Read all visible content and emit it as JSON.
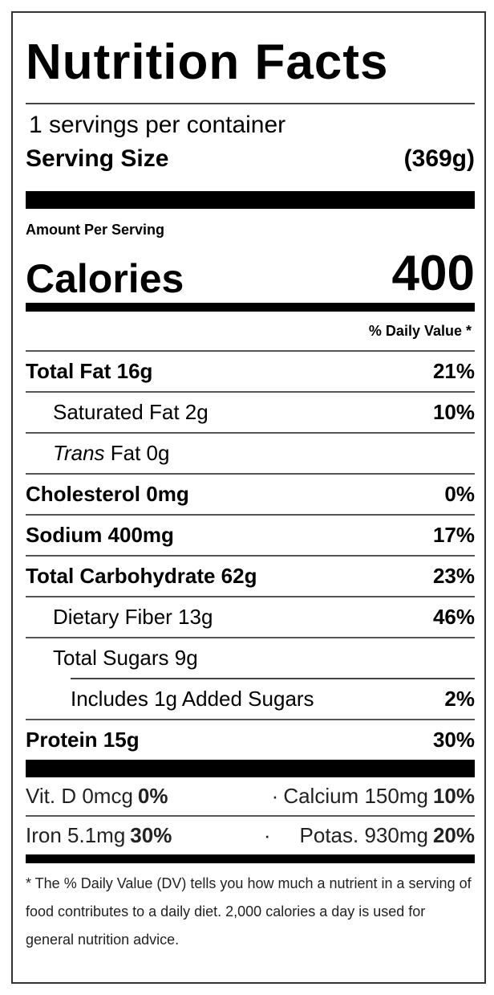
{
  "title": "Nutrition Facts",
  "servings_per_container": "1 servings per container",
  "serving_size_label": "Serving Size",
  "serving_size_value": "(369g)",
  "amount_per_serving": "Amount Per Serving",
  "calories_label": "Calories",
  "calories_value": "400",
  "daily_value_header": "% Daily Value *",
  "nutrients": [
    {
      "label": "Total Fat 16g",
      "dv": "21%"
    },
    {
      "label": "Saturated Fat 2g",
      "dv": "10%"
    },
    {
      "label_italic": "Trans",
      "label": " Fat 0g",
      "dv": ""
    },
    {
      "label": "Cholesterol 0mg",
      "dv": "0%"
    },
    {
      "label": "Sodium 400mg",
      "dv": "17%"
    },
    {
      "label": "Total Carbohydrate 62g",
      "dv": "23%"
    },
    {
      "label": "Dietary Fiber 13g",
      "dv": "46%"
    },
    {
      "label": "Total Sugars 9g",
      "dv": ""
    },
    {
      "label": "Includes 1g Added Sugars",
      "dv": "2%"
    },
    {
      "label": "Protein 15g",
      "dv": "30%"
    }
  ],
  "minerals": [
    {
      "label": "Vit. D 0mcg",
      "dv": "0%"
    },
    {
      "label": "Calcium 150mg",
      "dv": "10%"
    },
    {
      "label": "Iron 5.1mg",
      "dv": "30%"
    },
    {
      "label": "Potas. 930mg",
      "dv": "20%"
    }
  ],
  "separator": "·",
  "footnote": "* The % Daily Value (DV) tells you how much a nutrient in a serving of food contributes to a daily diet. 2,000 calories a day is used for general nutrition advice."
}
